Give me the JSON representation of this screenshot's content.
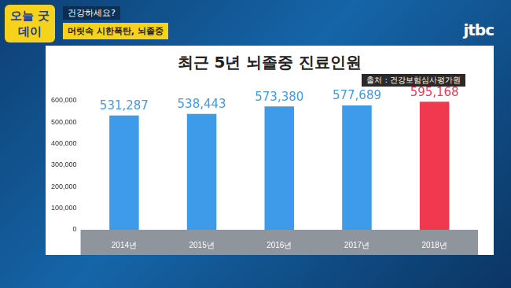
{
  "overlay": {
    "show": "오늘 굿데이",
    "topic": "건강하세요?",
    "headline": "머릿속 시한폭탄, 뇌졸중",
    "brand": "jtbc"
  },
  "chart_data": {
    "type": "bar",
    "title": "최근 5년 뇌졸중 진료인원",
    "subtitle": "출처 : 건강보험심사평가원",
    "categories": [
      "2014년",
      "2015년",
      "2016년",
      "2017년",
      "2018년"
    ],
    "values": [
      531287,
      538443,
      573380,
      577689,
      595168
    ],
    "value_labels": [
      "531,287",
      "538,443",
      "573,380",
      "577,689",
      "595,168"
    ],
    "colors": [
      "#3d9be9",
      "#3d9be9",
      "#3d9be9",
      "#3d9be9",
      "#f0394f"
    ],
    "ylim": [
      0,
      600000
    ],
    "yticks": [
      0,
      {
        "value": 100000,
        "label": "100,000"
      },
      {
        "value": 200000,
        "label": "200,000"
      },
      {
        "value": 300000,
        "label": "300,000"
      },
      {
        "value": 400000,
        "label": "400,000"
      },
      {
        "value": 500000,
        "label": "500,000"
      },
      {
        "value": 600000,
        "label": "600,000"
      }
    ],
    "grid": false,
    "data_labels": true
  }
}
